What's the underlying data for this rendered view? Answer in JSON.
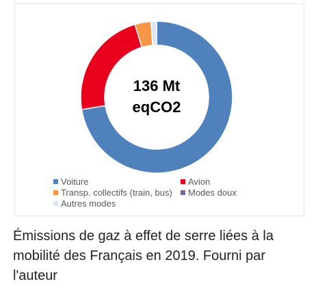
{
  "chart_data": {
    "type": "pie",
    "style": "donut",
    "center_label": [
      "136 Mt",
      "eqCO2"
    ],
    "categories": [
      "Voiture",
      "Avion",
      "Transp. collectifs (train, bus)",
      "Modes doux",
      "Autres modes"
    ],
    "values": [
      72.4,
      23.0,
      3.4,
      0.0,
      1.2
    ],
    "colors": [
      "#4f81bd",
      "#e8001c",
      "#f79646",
      "#8064a2",
      "#dce6f2"
    ],
    "legend_position": "bottom"
  },
  "caption": "Émissions de gaz à effet de serre liées à la mobilité des Français en 2019. Fourni par l'auteur"
}
